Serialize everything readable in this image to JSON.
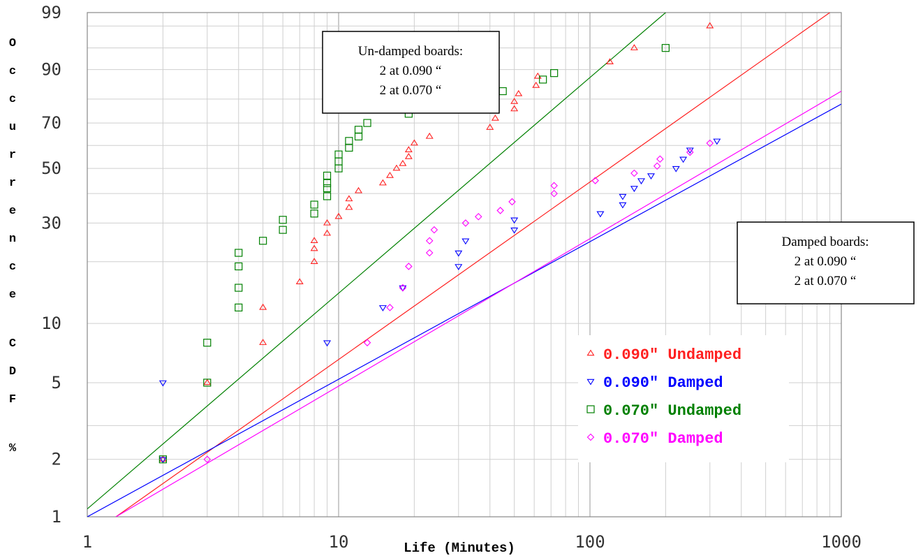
{
  "chart_data": {
    "type": "scatter",
    "xlabel": "Life (Minutes)",
    "ylabel": "Occurrence CDF %",
    "xscale": "log",
    "yscale": "weibull",
    "xlim": [
      1,
      1000
    ],
    "ylim": [
      1,
      99
    ],
    "x_ticks": [
      "1",
      "10",
      "100",
      "1000"
    ],
    "y_ticks": [
      "99",
      "90",
      "70",
      "50",
      "30",
      "10",
      "5",
      "2",
      "1"
    ],
    "grid": true,
    "legend_position": "lower-right",
    "annotations": [
      {
        "lines": [
          "Un-damped boards:",
          "2 at 0.090 “",
          "2 at 0.070 “"
        ]
      },
      {
        "lines": [
          "Damped boards:",
          "2 at 0.090 “",
          "2 at 0.070 “"
        ]
      }
    ],
    "series": [
      {
        "name": "0.090\" Undamped",
        "color": "#ff2020",
        "marker": "triangle-up",
        "points": [
          [
            2,
            2
          ],
          [
            3,
            5
          ],
          [
            5,
            8
          ],
          [
            5,
            12
          ],
          [
            7,
            16
          ],
          [
            8,
            20
          ],
          [
            8,
            23
          ],
          [
            8,
            25
          ],
          [
            9,
            27
          ],
          [
            9,
            30
          ],
          [
            10,
            32
          ],
          [
            11,
            35
          ],
          [
            11,
            38
          ],
          [
            12,
            41
          ],
          [
            15,
            44
          ],
          [
            16,
            47
          ],
          [
            17,
            50
          ],
          [
            18,
            52
          ],
          [
            19,
            55
          ],
          [
            19,
            58
          ],
          [
            20,
            61
          ],
          [
            23,
            64
          ],
          [
            40,
            68
          ],
          [
            42,
            72
          ],
          [
            50,
            76
          ],
          [
            50,
            79
          ],
          [
            52,
            82
          ],
          [
            61,
            85
          ],
          [
            62,
            88
          ],
          [
            120,
            92
          ],
          [
            150,
            95
          ],
          [
            300,
            98
          ]
        ],
        "fit": [
          [
            1.3,
            1
          ],
          [
            900,
            99
          ]
        ]
      },
      {
        "name": "0.090\" Damped",
        "color": "#0000ff",
        "marker": "triangle-down",
        "points": [
          [
            2,
            2
          ],
          [
            2,
            5
          ],
          [
            9,
            8
          ],
          [
            15,
            12
          ],
          [
            18,
            15
          ],
          [
            30,
            19
          ],
          [
            30,
            22
          ],
          [
            32,
            25
          ],
          [
            50,
            28
          ],
          [
            50,
            31
          ],
          [
            110,
            33
          ],
          [
            135,
            36
          ],
          [
            135,
            39
          ],
          [
            150,
            42
          ],
          [
            160,
            45
          ],
          [
            175,
            47
          ],
          [
            220,
            50
          ],
          [
            235,
            54
          ],
          [
            250,
            58
          ],
          [
            320,
            62
          ]
        ],
        "fit": [
          [
            1,
            1
          ],
          [
            1000,
            78
          ]
        ]
      },
      {
        "name": "0.070\" Undamped",
        "color": "#008000",
        "marker": "square",
        "points": [
          [
            2,
            2
          ],
          [
            3,
            5
          ],
          [
            3,
            8
          ],
          [
            4,
            12
          ],
          [
            4,
            15
          ],
          [
            4,
            19
          ],
          [
            4,
            22
          ],
          [
            5,
            25
          ],
          [
            6,
            28
          ],
          [
            6,
            31
          ],
          [
            8,
            33
          ],
          [
            8,
            36
          ],
          [
            9,
            39
          ],
          [
            9,
            42
          ],
          [
            9,
            44
          ],
          [
            9,
            47
          ],
          [
            10,
            50
          ],
          [
            10,
            53
          ],
          [
            10,
            56
          ],
          [
            11,
            59
          ],
          [
            11,
            62
          ],
          [
            12,
            64
          ],
          [
            12,
            67
          ],
          [
            13,
            70
          ],
          [
            19,
            74
          ],
          [
            21,
            76
          ],
          [
            32,
            79
          ],
          [
            45,
            83
          ],
          [
            65,
            87
          ],
          [
            72,
            89
          ],
          [
            200,
            95
          ]
        ],
        "fit": [
          [
            1,
            1.1
          ],
          [
            200,
            99
          ]
        ]
      },
      {
        "name": "0.070\" Damped",
        "color": "#ff00ff",
        "marker": "diamond",
        "points": [
          [
            3,
            2
          ],
          [
            13,
            8
          ],
          [
            16,
            12
          ],
          [
            18,
            15
          ],
          [
            19,
            19
          ],
          [
            23,
            22
          ],
          [
            23,
            25
          ],
          [
            24,
            28
          ],
          [
            32,
            30
          ],
          [
            36,
            32
          ],
          [
            44,
            34
          ],
          [
            49,
            37
          ],
          [
            72,
            40
          ],
          [
            72,
            43
          ],
          [
            105,
            45
          ],
          [
            150,
            48
          ],
          [
            185,
            51
          ],
          [
            190,
            54
          ],
          [
            250,
            57
          ],
          [
            300,
            61
          ]
        ],
        "fit": [
          [
            1.3,
            1
          ],
          [
            1000,
            83
          ]
        ]
      }
    ]
  }
}
